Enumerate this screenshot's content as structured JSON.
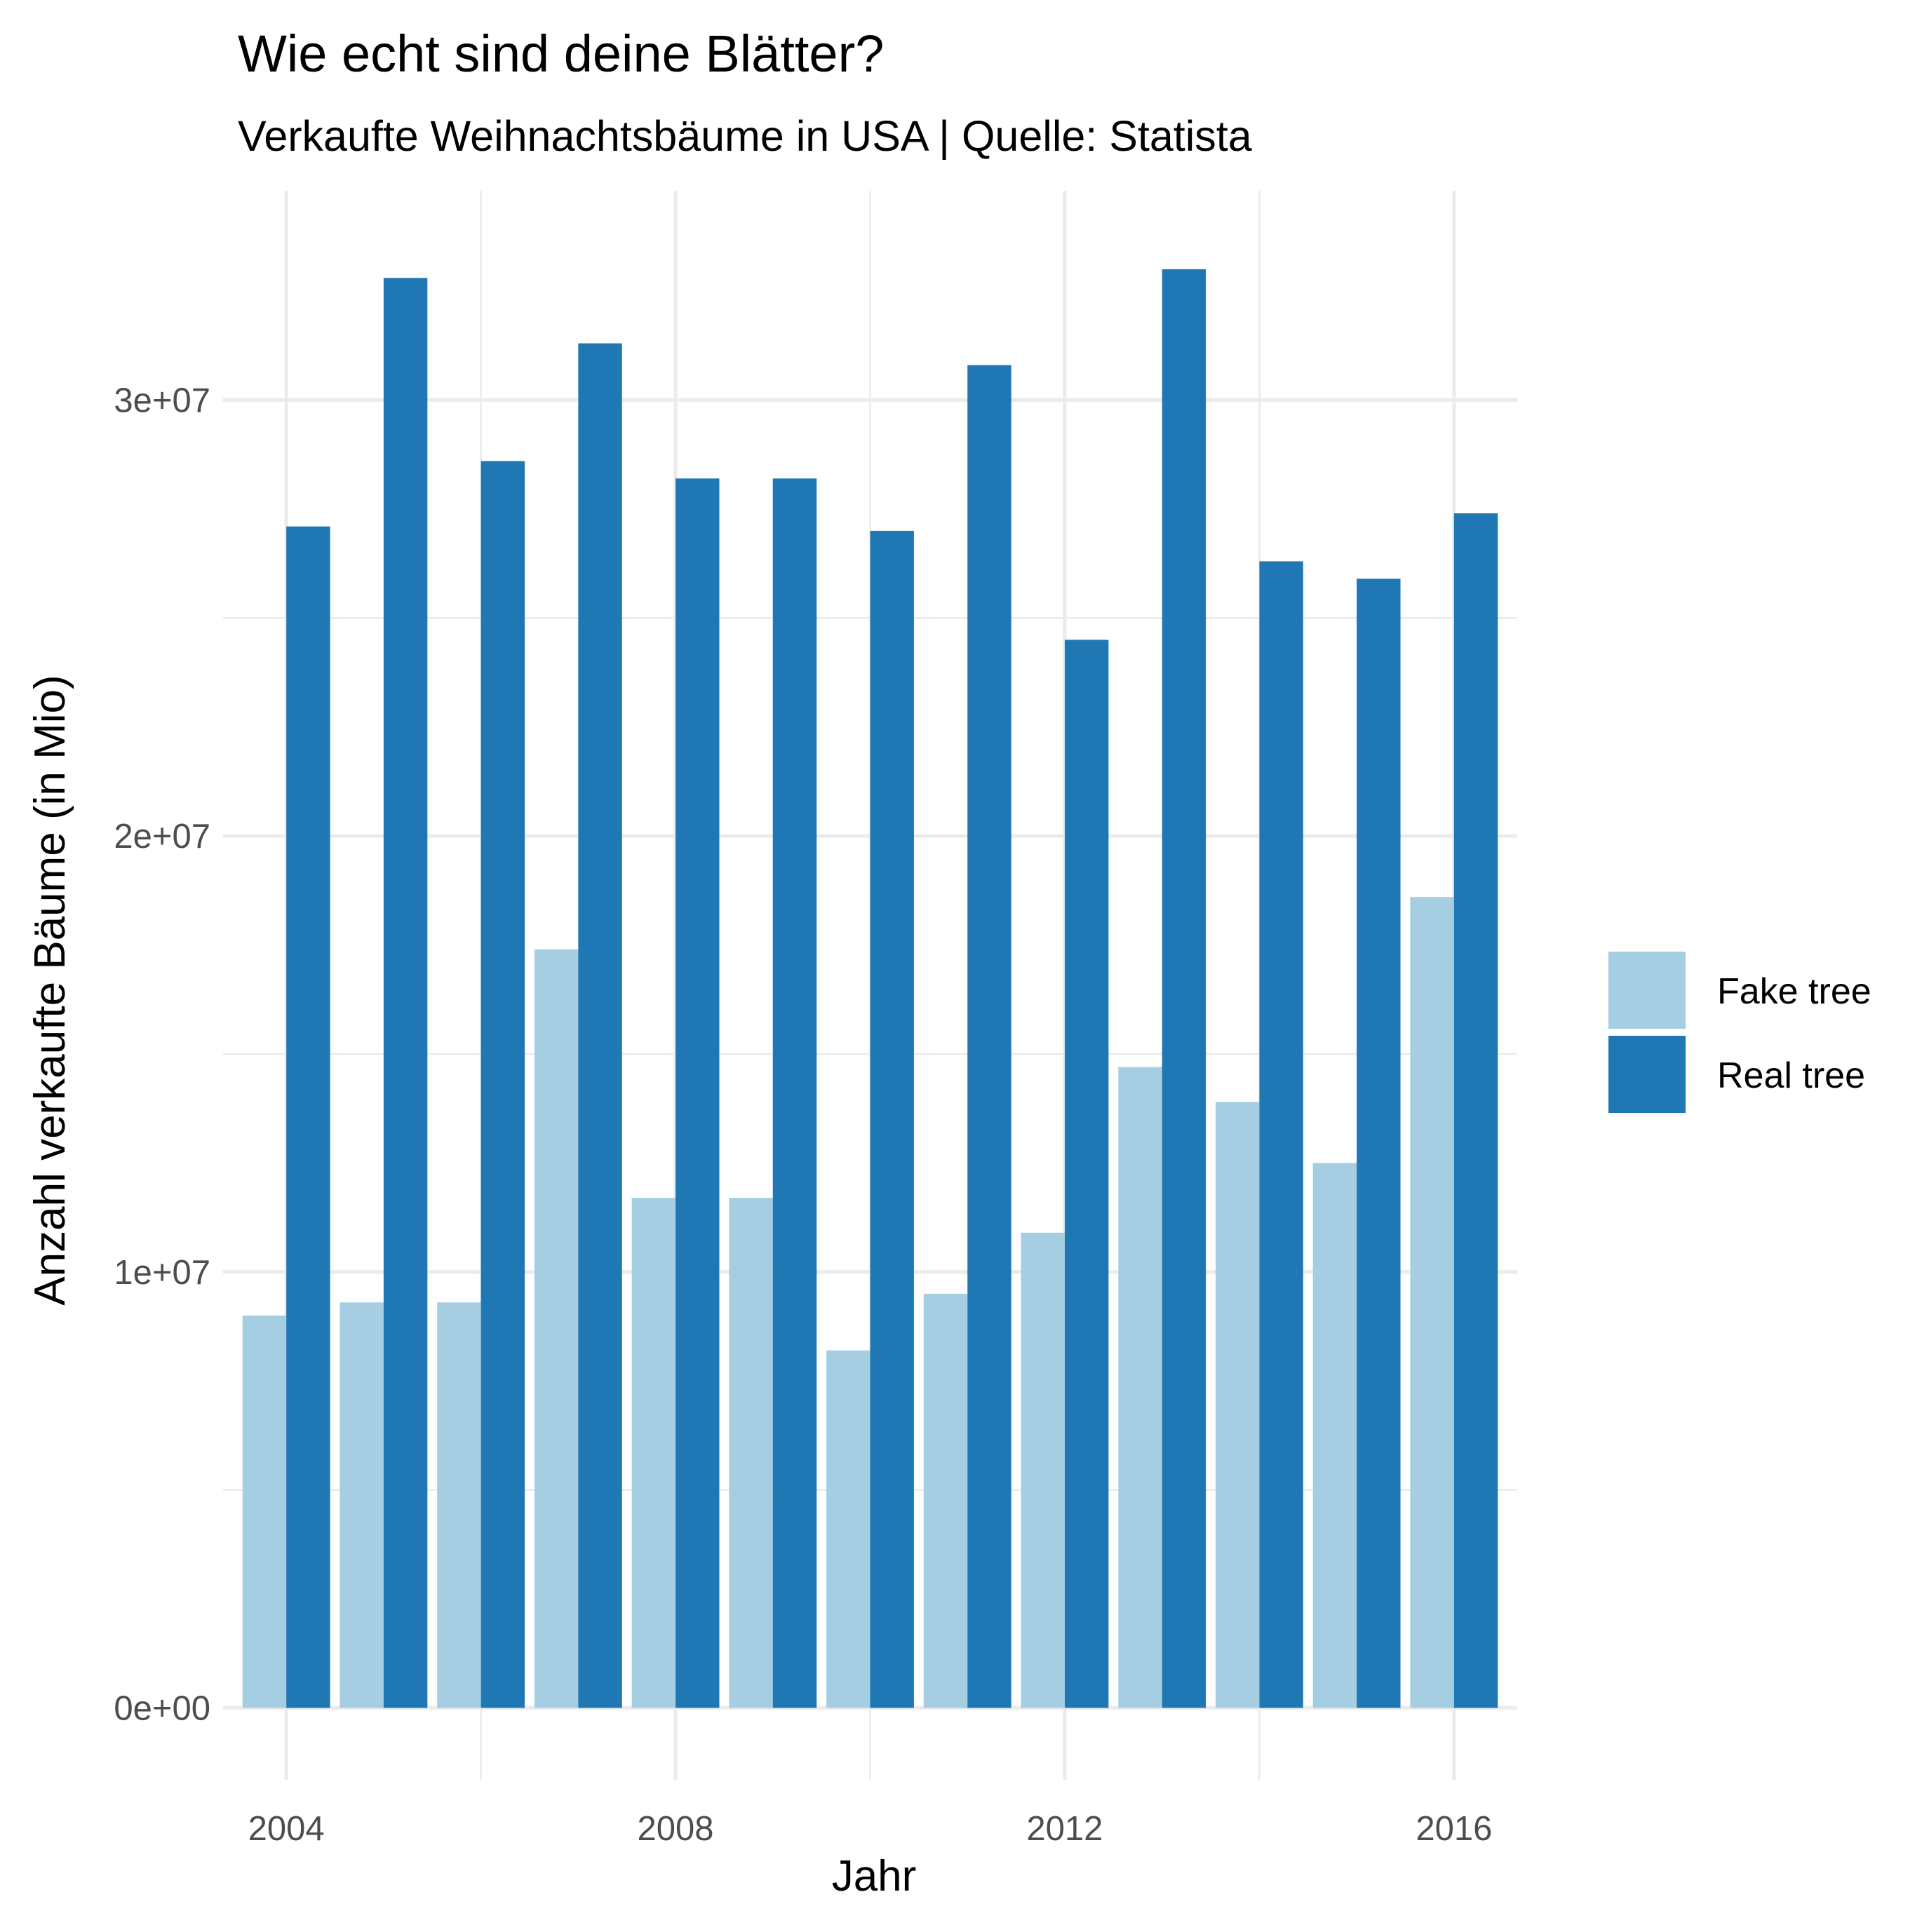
{
  "chart_data": {
    "type": "bar",
    "title": "Wie echt sind deine Blätter?",
    "subtitle": "Verkaufte Weihnachtsbäume in USA | Quelle: Statista",
    "xlabel": "Jahr",
    "ylabel": "Anzahl verkaufte Bäume (in Mio)",
    "x": [
      2004,
      2005,
      2006,
      2007,
      2008,
      2009,
      2010,
      2011,
      2012,
      2013,
      2014,
      2015,
      2016
    ],
    "x_ticks": [
      "2004",
      "2008",
      "2012",
      "2016"
    ],
    "x_tick_values": [
      2004,
      2008,
      2012,
      2016
    ],
    "y_ticks": [
      "0e+00",
      "1e+07",
      "2e+07",
      "3e+07"
    ],
    "y_tick_values": [
      0,
      10000000,
      20000000,
      30000000
    ],
    "xlim": [
      2003.35,
      2016.65
    ],
    "ylim": [
      -1650000,
      34800000
    ],
    "grid": true,
    "legend_position": "right",
    "series": [
      {
        "name": "Fake tree",
        "color": "#a6cee3",
        "values": [
          9000000,
          9300000,
          9300000,
          17400000,
          11700000,
          11700000,
          8200000,
          9500000,
          10900000,
          14700000,
          13900000,
          12500000,
          18600000
        ]
      },
      {
        "name": "Real tree",
        "color": "#1f78b4",
        "values": [
          27100000,
          32800000,
          28600000,
          31300000,
          28200000,
          28200000,
          27000000,
          30800000,
          24500000,
          33000000,
          26300000,
          25900000,
          27400000
        ]
      }
    ]
  }
}
